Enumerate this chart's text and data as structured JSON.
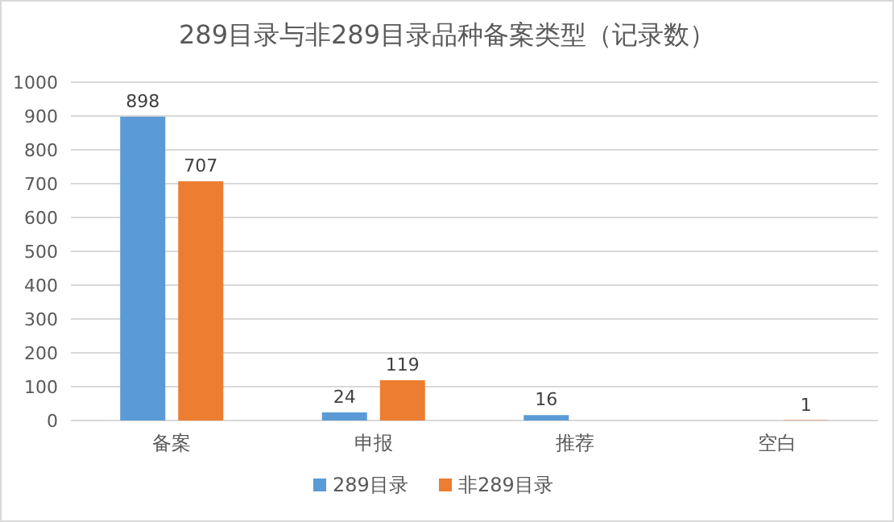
{
  "chart_data": {
    "type": "bar",
    "title": "289目录与非289目录品种备案类型（记录数）",
    "categories": [
      "备案",
      "申报",
      "推荐",
      "空白"
    ],
    "series": [
      {
        "name": "289目录",
        "color": "#5b9bd5",
        "values": [
          898,
          24,
          16,
          null
        ]
      },
      {
        "name": "非289目录",
        "color": "#ed7d31",
        "values": [
          707,
          119,
          null,
          1
        ]
      }
    ],
    "ylim": [
      0,
      1000
    ],
    "yticks": [
      0,
      100,
      200,
      300,
      400,
      500,
      600,
      700,
      800,
      900,
      1000
    ],
    "grid": "y",
    "legend": "bottom",
    "data_labels": true
  }
}
